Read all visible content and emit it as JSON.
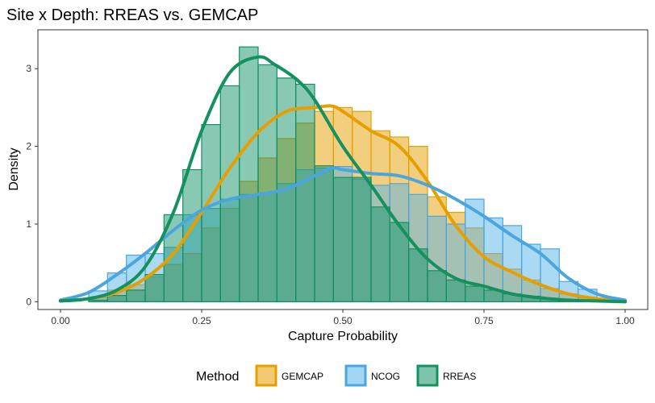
{
  "chart_data": {
    "type": "histogram+density",
    "title": "Site x Depth: RREAS vs. GEMCAP",
    "xlabel": "Capture Probability",
    "ylabel": "Density",
    "xlim": [
      -0.04,
      1.04
    ],
    "ylim": [
      -0.1,
      3.5
    ],
    "x_ticks": [
      {
        "value": 0,
        "label": "0.00"
      },
      {
        "value": 0.25,
        "label": "0.25"
      },
      {
        "value": 0.5,
        "label": "0.50"
      },
      {
        "value": 0.75,
        "label": "0.75"
      },
      {
        "value": 1,
        "label": "1.00"
      }
    ],
    "y_ticks": [
      {
        "value": 0,
        "label": "0"
      },
      {
        "value": 1,
        "label": "1"
      },
      {
        "value": 2,
        "label": "2"
      },
      {
        "value": 3,
        "label": "3"
      }
    ],
    "grid": false,
    "legend": {
      "title": "Method",
      "position": "bottom"
    },
    "bin_width": 0.0333,
    "bin_starts": [
      0.05,
      0.0833,
      0.1167,
      0.15,
      0.1833,
      0.2167,
      0.25,
      0.2833,
      0.3167,
      0.35,
      0.3833,
      0.4167,
      0.45,
      0.4833,
      0.5167,
      0.55,
      0.5833,
      0.6167,
      0.65,
      0.6833,
      0.7167,
      0.75,
      0.7833,
      0.8167,
      0.85,
      0.8833,
      0.9167
    ],
    "series": [
      {
        "name": "GEMCAP",
        "fill": "#E69F00",
        "line": "#E69F00",
        "hist": [
          0.05,
          0.15,
          0.22,
          0.32,
          0.48,
          0.62,
          0.95,
          1.2,
          1.55,
          1.85,
          2.1,
          2.3,
          2.45,
          2.5,
          2.45,
          2.2,
          2.12,
          2.0,
          1.35,
          1.15,
          0.95,
          0.62,
          0.42,
          0.28,
          0.17,
          0.1,
          0.05
        ],
        "density_x": [
          0,
          0.05,
          0.1,
          0.15,
          0.2,
          0.25,
          0.3,
          0.35,
          0.4,
          0.45,
          0.48,
          0.5,
          0.55,
          0.6,
          0.65,
          0.7,
          0.75,
          0.8,
          0.85,
          0.9,
          0.95,
          1
        ],
        "density_y": [
          0.01,
          0.04,
          0.12,
          0.3,
          0.62,
          1.15,
          1.72,
          2.18,
          2.45,
          2.5,
          2.52,
          2.45,
          2.2,
          2.0,
          1.55,
          0.98,
          0.58,
          0.38,
          0.22,
          0.1,
          0.04,
          0.01
        ]
      },
      {
        "name": "NCOG",
        "fill": "#56B4E9",
        "line": "#4BA6E0",
        "hist": [
          0.14,
          0.37,
          0.6,
          0.62,
          0.7,
          1.12,
          1.2,
          1.32,
          1.38,
          1.4,
          1.52,
          1.7,
          1.72,
          1.74,
          1.58,
          1.5,
          1.52,
          1.38,
          1.1,
          1.0,
          1.32,
          1.08,
          0.98,
          0.74,
          0.68,
          0.26,
          0.16
        ],
        "density_x": [
          0,
          0.05,
          0.1,
          0.15,
          0.2,
          0.25,
          0.3,
          0.35,
          0.4,
          0.45,
          0.48,
          0.5,
          0.55,
          0.6,
          0.65,
          0.7,
          0.75,
          0.8,
          0.85,
          0.9,
          0.95,
          1
        ],
        "density_y": [
          0.02,
          0.12,
          0.35,
          0.62,
          0.92,
          1.18,
          1.32,
          1.38,
          1.45,
          1.62,
          1.72,
          1.7,
          1.65,
          1.62,
          1.5,
          1.32,
          1.1,
          0.85,
          0.62,
          0.3,
          0.1,
          0.02
        ]
      },
      {
        "name": "RREAS",
        "fill": "#149469",
        "line": "#15905F",
        "hist": [
          0.02,
          0.08,
          0.15,
          0.35,
          1.12,
          1.7,
          2.28,
          2.78,
          3.28,
          3.05,
          2.88,
          2.8,
          1.75,
          1.6,
          1.6,
          1.22,
          1.02,
          0.68,
          0.4,
          0.28,
          0.2,
          0.15,
          0.1,
          0.07,
          0.04,
          0.02,
          0.01
        ],
        "density_x": [
          0,
          0.05,
          0.1,
          0.15,
          0.2,
          0.25,
          0.3,
          0.35,
          0.38,
          0.42,
          0.45,
          0.5,
          0.55,
          0.6,
          0.65,
          0.7,
          0.75,
          0.8,
          0.85,
          0.9,
          0.95,
          1
        ],
        "density_y": [
          0.01,
          0.04,
          0.15,
          0.45,
          1.15,
          2.2,
          2.95,
          3.15,
          3.05,
          2.85,
          2.6,
          2.0,
          1.5,
          0.98,
          0.55,
          0.3,
          0.2,
          0.1,
          0.05,
          0.02,
          0.01,
          0.0
        ]
      }
    ]
  }
}
